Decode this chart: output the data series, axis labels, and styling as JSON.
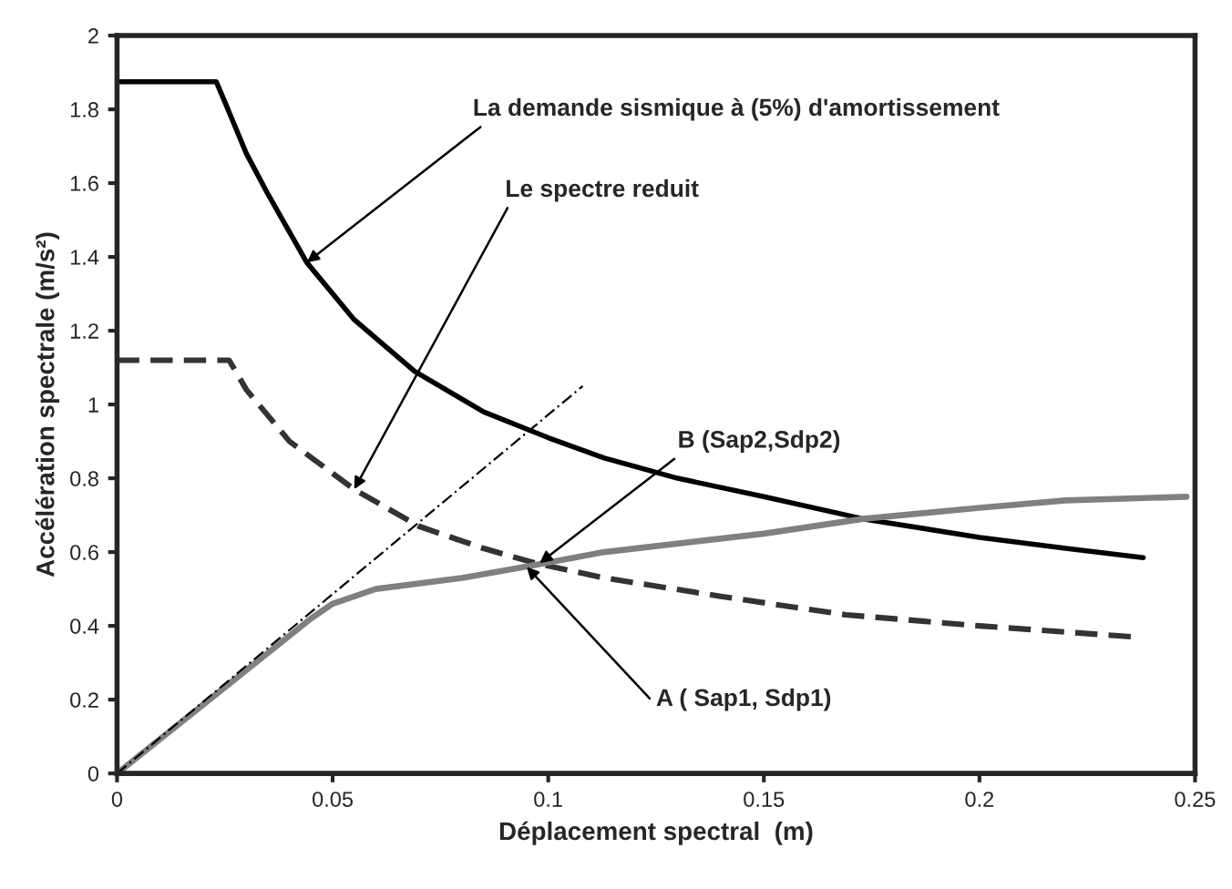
{
  "chart_data": {
    "type": "line",
    "xlabel": "Déplacement spectral  (m)",
    "ylabel": "Accélération spectrale (m/s²)",
    "xlim": [
      0,
      0.25
    ],
    "xticks": [
      0,
      0.05,
      0.1,
      0.15,
      0.2,
      0.25
    ],
    "ylim": [
      0,
      2
    ],
    "yticks": [
      0,
      0.2,
      0.4,
      0.6,
      0.8,
      1,
      1.2,
      1.4,
      1.6,
      1.8,
      2
    ],
    "grid": false,
    "marker": "none",
    "series": [
      {
        "color": "#000000",
        "line_style": "solid",
        "x": [
          0,
          0.023,
          0.025,
          0.03,
          0.035,
          0.044,
          0.055,
          0.069,
          0.085,
          0.1,
          0.113,
          0.13,
          0.15,
          0.173,
          0.2,
          0.22,
          0.238
        ],
        "values": [
          1.875,
          1.875,
          1.82,
          1.68,
          1.57,
          1.385,
          1.23,
          1.09,
          0.98,
          0.91,
          0.855,
          0.8,
          0.75,
          0.69,
          0.64,
          0.61,
          0.585
        ]
      },
      {
        "color": "#333333",
        "line_style": "dashed",
        "x": [
          0,
          0.026,
          0.03,
          0.04,
          0.055,
          0.07,
          0.085,
          0.097,
          0.113,
          0.14,
          0.169,
          0.2,
          0.236
        ],
        "values": [
          1.12,
          1.12,
          1.04,
          0.9,
          0.77,
          0.67,
          0.61,
          0.57,
          0.53,
          0.48,
          0.43,
          0.4,
          0.37
        ]
      },
      {
        "color": "#808080",
        "line_style": "solid",
        "x": [
          0,
          0.045,
          0.05,
          0.06,
          0.08,
          0.097,
          0.113,
          0.15,
          0.173,
          0.2,
          0.22,
          0.248
        ],
        "values": [
          0,
          0.42,
          0.46,
          0.5,
          0.53,
          0.565,
          0.6,
          0.65,
          0.69,
          0.72,
          0.74,
          0.75
        ]
      },
      {
        "color": "#000000",
        "line_style": "dashdot",
        "x": [
          0,
          0.108
        ],
        "values": [
          0,
          1.05
        ]
      }
    ],
    "annotations": [
      {
        "text": "La demande sismique à (5%) d'amortissement",
        "x": 0.044,
        "y": 1.385
      },
      {
        "text": "Le spectre reduit",
        "x": 0.055,
        "y": 0.77
      },
      {
        "text": "B (Sap2,Sdp2)",
        "x": 0.098,
        "y": 0.57
      },
      {
        "text": "A ( Sap1, Sdp1)",
        "x": 0.095,
        "y": 0.56
      }
    ]
  }
}
